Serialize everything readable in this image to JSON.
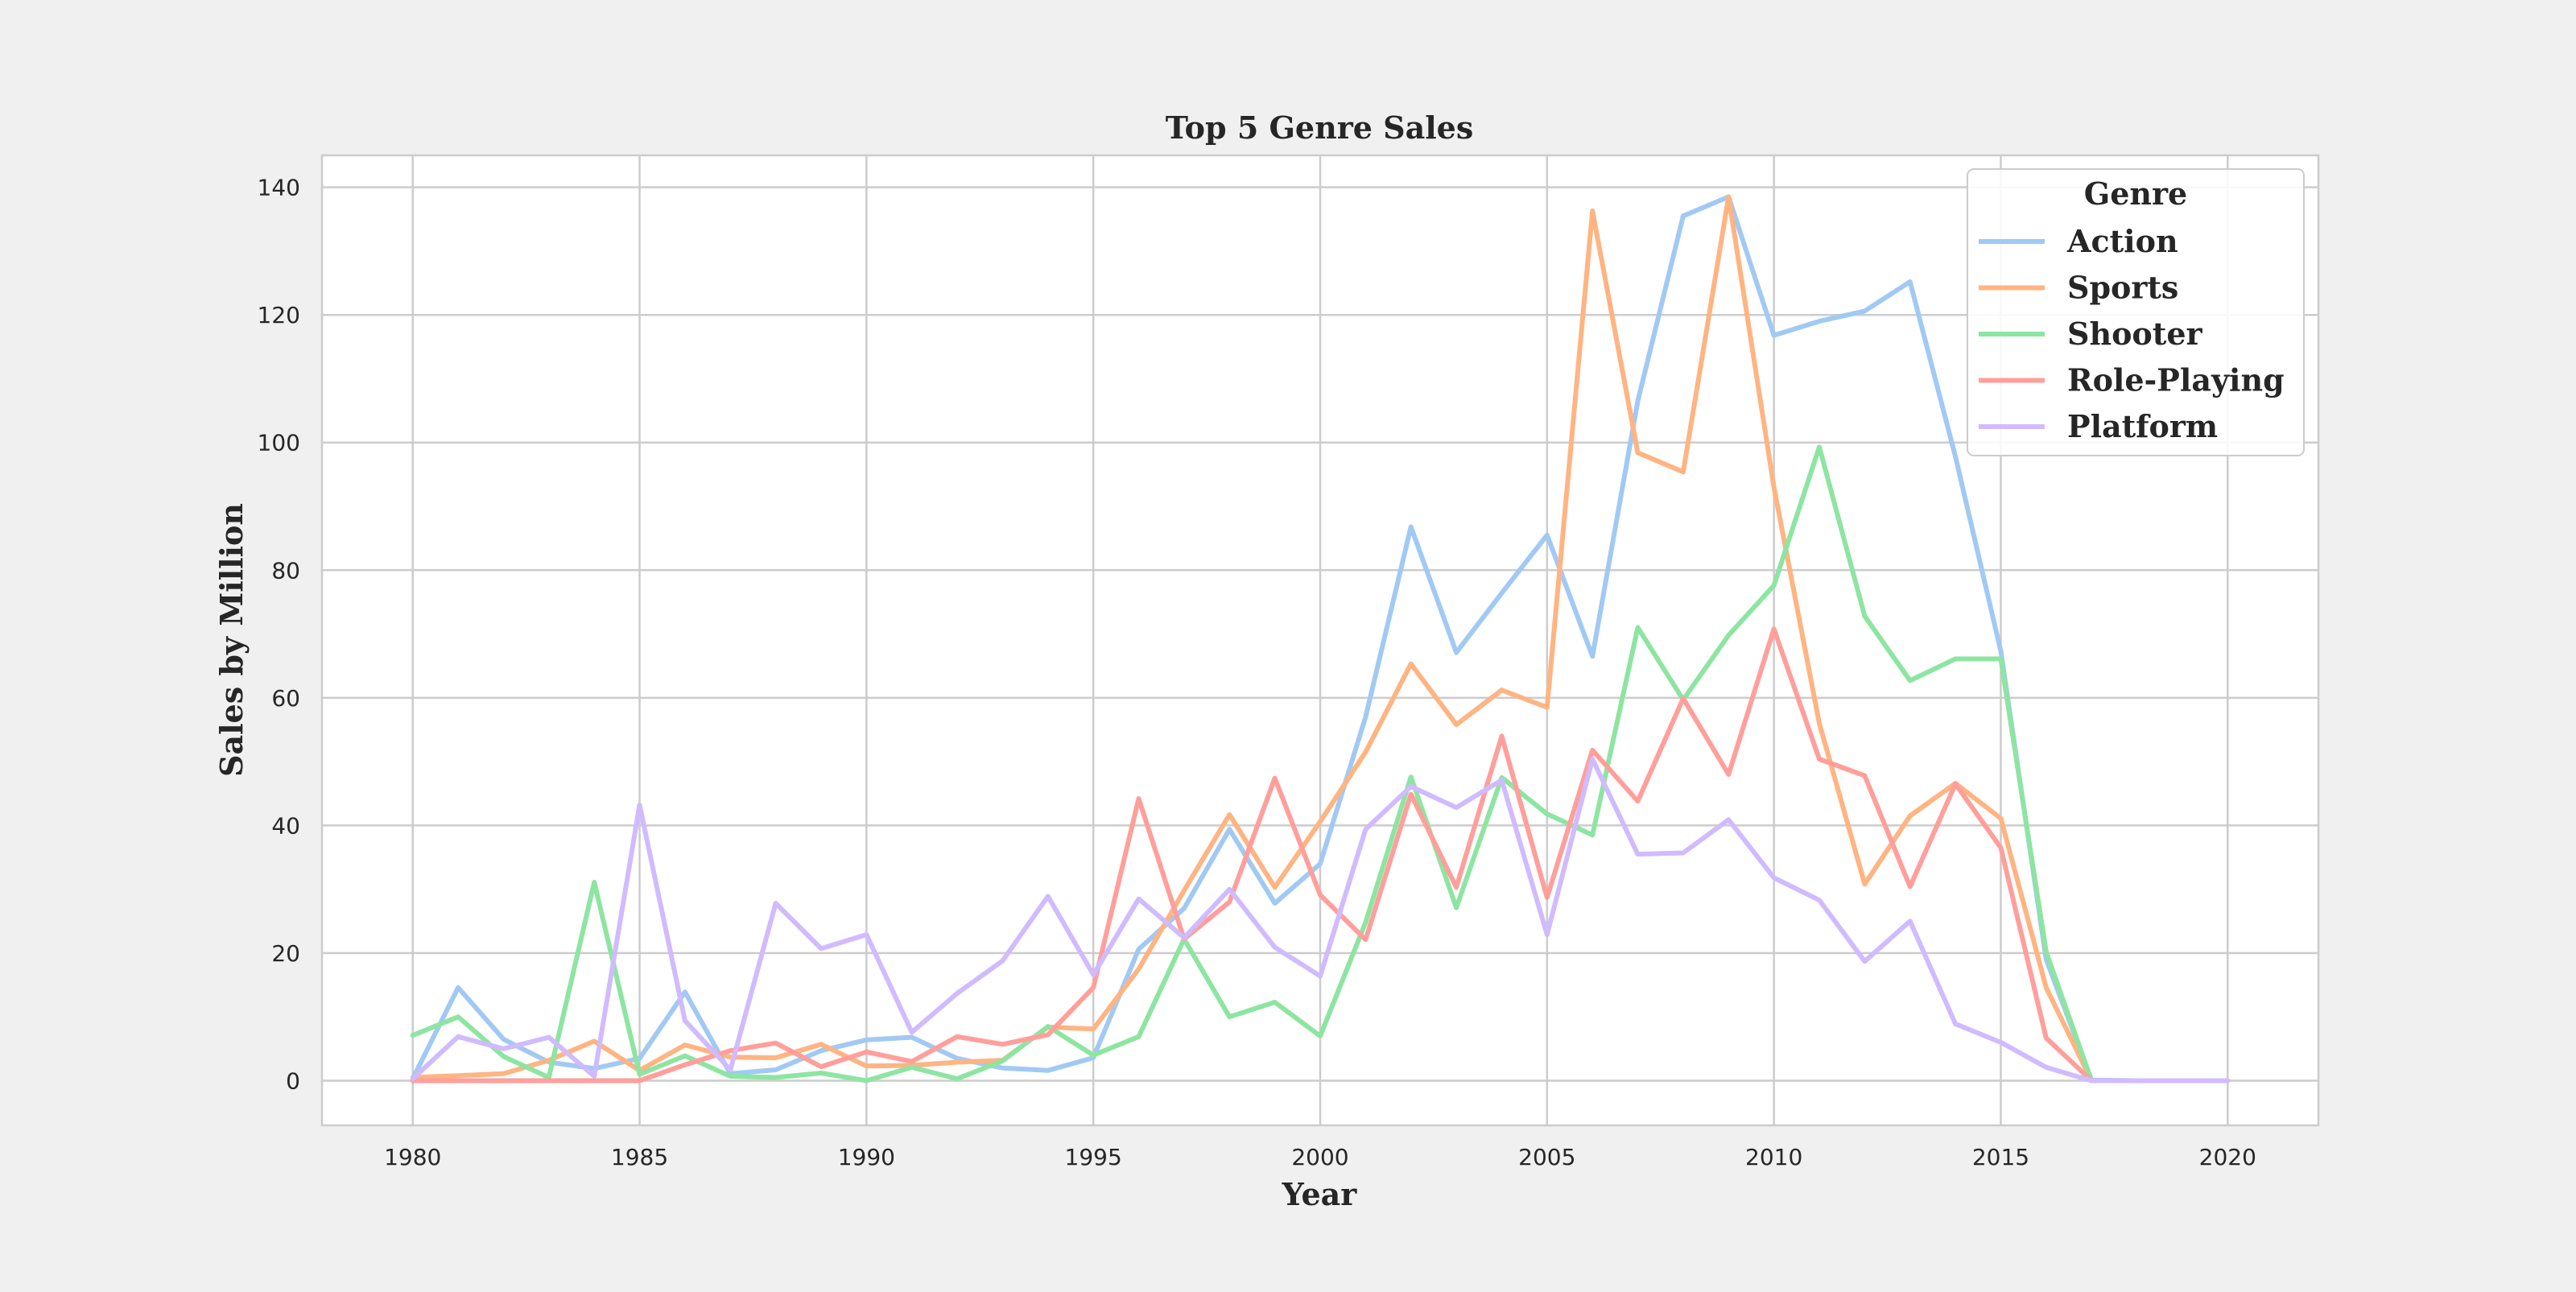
{
  "chart_data": {
    "type": "line",
    "title": "Top 5 Genre Sales",
    "xlabel": "Year",
    "ylabel": "Sales by Million",
    "xlim": [
      1978,
      2022
    ],
    "ylim": [
      -7,
      145
    ],
    "x_ticks": [
      1980,
      1985,
      1990,
      1995,
      2000,
      2005,
      2010,
      2015,
      2020
    ],
    "y_ticks": [
      0,
      20,
      40,
      60,
      80,
      100,
      120,
      140
    ],
    "grid": true,
    "legend": {
      "title": "Genre",
      "placement": "top-right"
    },
    "x": [
      1980,
      1981,
      1982,
      1983,
      1984,
      1985,
      1986,
      1987,
      1988,
      1989,
      1990,
      1991,
      1992,
      1993,
      1994,
      1995,
      1996,
      1997,
      1998,
      1999,
      2000,
      2001,
      2002,
      2003,
      2004,
      2005,
      2006,
      2007,
      2008,
      2009,
      2010,
      2011,
      2012,
      2013,
      2014,
      2015,
      2016,
      2017,
      2018,
      2019,
      2020
    ],
    "series": [
      {
        "name": "Action",
        "color": "#a1c9f4",
        "values": [
          0.3,
          14.6,
          6.5,
          2.9,
          1.9,
          3.5,
          13.9,
          1.1,
          1.7,
          4.7,
          6.4,
          6.8,
          3.5,
          2.0,
          1.6,
          3.6,
          20.6,
          27.0,
          39.4,
          27.8,
          34.0,
          57.0,
          86.8,
          67.1,
          76.4,
          85.5,
          66.5,
          106.5,
          135.5,
          138.5,
          116.8,
          119.0,
          120.6,
          125.2,
          97.8,
          67.3,
          19.0,
          0.1,
          0,
          0,
          0
        ]
      },
      {
        "name": "Sports",
        "color": "#ffb482",
        "values": [
          0.5,
          0.8,
          1.1,
          3.2,
          6.2,
          1.6,
          5.6,
          3.7,
          3.6,
          5.7,
          2.3,
          2.4,
          2.9,
          3.2,
          8.4,
          8.1,
          17.5,
          29.8,
          41.7,
          30.3,
          40.6,
          51.5,
          65.3,
          55.8,
          61.2,
          58.5,
          136.3,
          98.4,
          95.4,
          138.5,
          93.0,
          56.0,
          30.8,
          41.5,
          46.6,
          41.1,
          14.6,
          0,
          0,
          0,
          0
        ]
      },
      {
        "name": "Shooter",
        "color": "#8de5a1",
        "values": [
          7.1,
          10.0,
          3.8,
          0.5,
          31.1,
          1.0,
          3.9,
          0.7,
          0.5,
          1.2,
          0.0,
          2.1,
          0.3,
          3.1,
          8.5,
          4.0,
          6.9,
          22.2,
          10.0,
          12.3,
          7.0,
          24.8,
          47.6,
          27.1,
          47.5,
          41.8,
          38.5,
          71.0,
          59.7,
          69.8,
          77.6,
          99.3,
          72.8,
          62.7,
          66.1,
          66.1,
          20.2,
          0,
          0,
          0,
          0
        ]
      },
      {
        "name": "Role-Playing",
        "color": "#ff9f9b",
        "values": [
          0,
          0,
          0,
          0,
          0,
          0,
          2.5,
          4.7,
          5.9,
          2.2,
          4.5,
          3.0,
          6.9,
          5.7,
          7.2,
          14.6,
          44.2,
          22.2,
          28.0,
          47.4,
          29.1,
          22.1,
          44.9,
          30.3,
          54.0,
          28.7,
          51.8,
          43.8,
          59.9,
          48.0,
          70.8,
          50.4,
          47.8,
          30.4,
          46.5,
          36.5,
          6.7,
          0,
          0,
          0,
          0
        ]
      },
      {
        "name": "Platform",
        "color": "#d0bbff",
        "values": [
          0.3,
          6.9,
          5.0,
          6.8,
          0.7,
          43.2,
          9.4,
          1.7,
          27.8,
          20.7,
          22.9,
          7.6,
          13.7,
          18.8,
          28.9,
          16.6,
          28.5,
          22.4,
          30.0,
          20.9,
          16.4,
          39.4,
          46.1,
          42.8,
          47.1,
          22.9,
          50.4,
          35.5,
          35.7,
          40.9,
          31.8,
          28.3,
          18.7,
          25.0,
          8.9,
          6.0,
          2.1,
          0,
          0,
          0,
          0
        ]
      }
    ]
  }
}
